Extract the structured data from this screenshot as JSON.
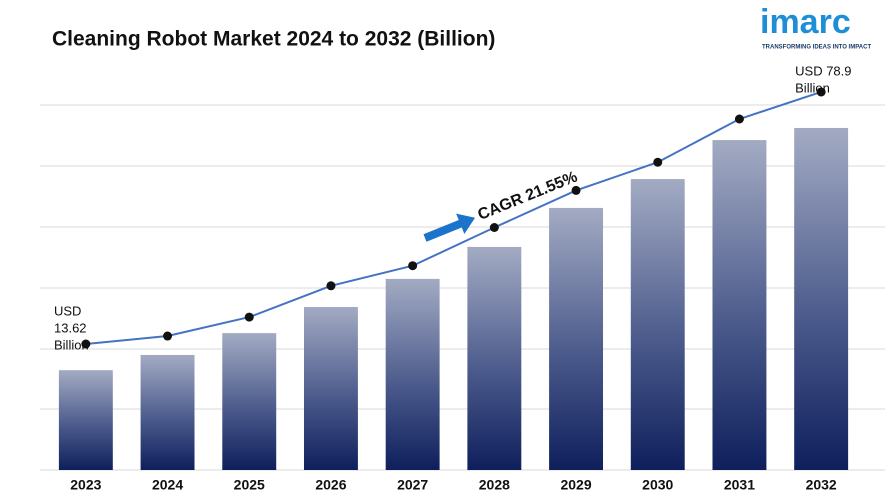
{
  "chart_data": {
    "type": "bar",
    "title": "Cleaning Robot Market 2024 to 2032 (Billion)",
    "categories": [
      "2023",
      "2024",
      "2025",
      "2026",
      "2027",
      "2028",
      "2029",
      "2030",
      "2031",
      "2032"
    ],
    "series": [
      {
        "type": "bar",
        "color": "#1a2a64",
        "values": [
          25.6,
          29.5,
          35.1,
          41.8,
          49.0,
          57.2,
          67.2,
          74.6,
          84.6,
          87.7
        ]
      },
      {
        "type": "line",
        "axis": "y2",
        "color": "#4472c4",
        "values": [
          13.62,
          15.7,
          20.6,
          28.7,
          33.9,
          43.8,
          53.4,
          60.7,
          71.9,
          78.9
        ]
      }
    ],
    "ylim": [
      0,
      100
    ],
    "y2lim": [
      -19,
      82
    ],
    "grid": true,
    "start_label": [
      "USD",
      "13.62",
      "Billion"
    ],
    "end_label": [
      "USD 78.9",
      "Billion"
    ],
    "cagr_label": "CAGR 21.55%",
    "logo": {
      "name": "imarc",
      "tagline": "TRANSFORMING IDEAS INTO IMPACT"
    }
  }
}
